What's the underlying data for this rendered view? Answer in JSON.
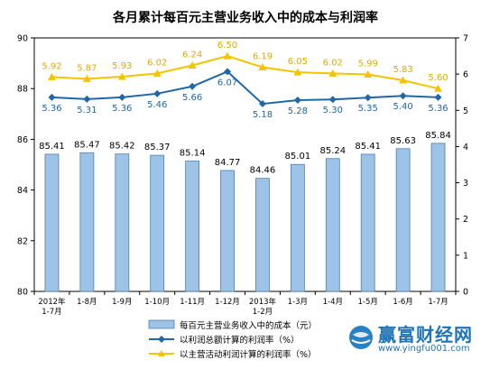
{
  "chart_data": {
    "type": "bar+line",
    "title": "各月累计每百元主营业务收入中的成本与利润率",
    "categories": [
      [
        "2012年",
        "1-7月"
      ],
      [
        "1-8月"
      ],
      [
        "1-9月"
      ],
      [
        "1-10月"
      ],
      [
        "1-11月"
      ],
      [
        "1-12月"
      ],
      [
        "2013年",
        "1-2月"
      ],
      [
        "1-3月"
      ],
      [
        "1-4月"
      ],
      [
        "1-5月"
      ],
      [
        "1-6月"
      ],
      [
        "1-7月"
      ]
    ],
    "left_axis": {
      "ylim": [
        80,
        90
      ],
      "ticks": [
        "80",
        "82",
        "84",
        "86",
        "88",
        "90"
      ]
    },
    "right_axis": {
      "ylim": [
        0,
        7
      ],
      "ticks": [
        "0",
        "1",
        "2",
        "3",
        "4",
        "5",
        "6",
        "7"
      ]
    },
    "grid": false,
    "legend_position": "bottom",
    "series": [
      {
        "name": "每百元主营业务收入中的成本（元）",
        "type": "bar",
        "axis": "left",
        "color": "#9dc3e6",
        "values": [
          85.41,
          85.47,
          85.42,
          85.37,
          85.14,
          84.77,
          84.46,
          85.01,
          85.24,
          85.41,
          85.63,
          85.84
        ],
        "labels": [
          "85.41",
          "85.47",
          "85.42",
          "85.37",
          "85.14",
          "84.77",
          "84.46",
          "85.01",
          "85.24",
          "85.41",
          "85.63",
          "85.84"
        ]
      },
      {
        "name": "以利润总额计算的利润率（%）",
        "type": "line",
        "axis": "right",
        "color": "#1f67a6",
        "values": [
          5.36,
          5.31,
          5.36,
          5.46,
          5.66,
          6.07,
          5.18,
          5.28,
          5.3,
          5.35,
          5.4,
          5.36
        ],
        "labels": [
          "5.36",
          "5.31",
          "5.36",
          "5.46",
          "5.66",
          "6.07",
          "5.18",
          "5.28",
          "5.30",
          "5.35",
          "5.40",
          "5.36"
        ]
      },
      {
        "name": "以主营活动利润计算的利润率（%）",
        "type": "line",
        "axis": "right",
        "color": "#f5c400",
        "values": [
          5.92,
          5.87,
          5.93,
          6.02,
          6.24,
          6.5,
          6.19,
          6.05,
          6.02,
          5.99,
          5.83,
          5.6
        ],
        "labels": [
          "5.92",
          "5.87",
          "5.93",
          "6.02",
          "6.24",
          "6.50",
          "6.19",
          "6.05",
          "6.02",
          "5.99",
          "5.83",
          "5.60"
        ]
      }
    ]
  },
  "watermark": {
    "title": "赢富财经网",
    "url": "www.yingfu001.com"
  }
}
